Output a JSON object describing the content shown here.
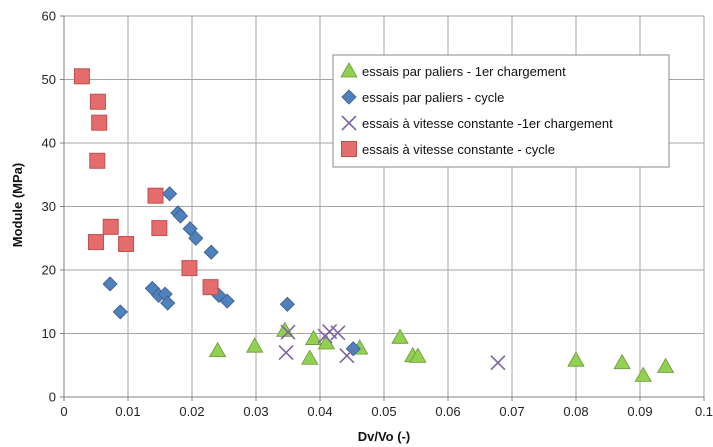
{
  "chart_data": {
    "type": "scatter",
    "title": "",
    "xlabel": "Dv/Vo (-)",
    "ylabel": "Module  (MPa)",
    "xlim": [
      0,
      0.1
    ],
    "ylim": [
      0,
      60
    ],
    "x_ticks": [
      "0",
      "0.01",
      "0.02",
      "0.03",
      "0.04",
      "0.05",
      "0.06",
      "0.07",
      "0.08",
      "0.09",
      "0.1"
    ],
    "y_ticks": [
      "0",
      "10",
      "20",
      "30",
      "40",
      "50",
      "60"
    ],
    "grid": "vertical-and-horizontal",
    "legend_position": "top-right",
    "series": [
      {
        "name": "essais par paliers - 1er chargement",
        "marker": "triangle",
        "color": "#92D050",
        "points": [
          {
            "x": 0.024,
            "y": 7.3
          },
          {
            "x": 0.0298,
            "y": 8.0
          },
          {
            "x": 0.0345,
            "y": 10.5
          },
          {
            "x": 0.0384,
            "y": 6.1
          },
          {
            "x": 0.039,
            "y": 9.2
          },
          {
            "x": 0.041,
            "y": 8.5
          },
          {
            "x": 0.0462,
            "y": 7.7
          },
          {
            "x": 0.0525,
            "y": 9.4
          },
          {
            "x": 0.0545,
            "y": 6.5
          },
          {
            "x": 0.0553,
            "y": 6.4
          },
          {
            "x": 0.08,
            "y": 5.8
          },
          {
            "x": 0.0872,
            "y": 5.4
          },
          {
            "x": 0.0905,
            "y": 3.4
          },
          {
            "x": 0.094,
            "y": 4.8
          }
        ]
      },
      {
        "name": "essais par paliers - cycle",
        "marker": "diamond",
        "color": "#4F81BD",
        "points": [
          {
            "x": 0.0072,
            "y": 17.8
          },
          {
            "x": 0.0088,
            "y": 13.4
          },
          {
            "x": 0.0138,
            "y": 17.1
          },
          {
            "x": 0.0148,
            "y": 16.0
          },
          {
            "x": 0.0158,
            "y": 16.2
          },
          {
            "x": 0.0162,
            "y": 14.8
          },
          {
            "x": 0.0165,
            "y": 32.0
          },
          {
            "x": 0.0178,
            "y": 29.0
          },
          {
            "x": 0.0182,
            "y": 28.5
          },
          {
            "x": 0.0197,
            "y": 26.5
          },
          {
            "x": 0.0206,
            "y": 25.0
          },
          {
            "x": 0.023,
            "y": 22.8
          },
          {
            "x": 0.0242,
            "y": 16.0
          },
          {
            "x": 0.0255,
            "y": 15.1
          },
          {
            "x": 0.0349,
            "y": 14.6
          },
          {
            "x": 0.0452,
            "y": 7.6
          }
        ]
      },
      {
        "name": "essais à vitesse constante -1er chargement",
        "marker": "x",
        "color": "#8064A2",
        "points": [
          {
            "x": 0.0347,
            "y": 7.0
          },
          {
            "x": 0.035,
            "y": 10.2
          },
          {
            "x": 0.0408,
            "y": 9.6
          },
          {
            "x": 0.0415,
            "y": 10.3
          },
          {
            "x": 0.0428,
            "y": 10.1
          },
          {
            "x": 0.0442,
            "y": 6.5
          },
          {
            "x": 0.0678,
            "y": 5.4
          }
        ]
      },
      {
        "name": "essais à vitesse constante - cycle",
        "marker": "square",
        "color": "#E46C6C",
        "points": [
          {
            "x": 0.0028,
            "y": 50.5
          },
          {
            "x": 0.0053,
            "y": 46.5
          },
          {
            "x": 0.0055,
            "y": 43.2
          },
          {
            "x": 0.0052,
            "y": 37.2
          },
          {
            "x": 0.005,
            "y": 24.4
          },
          {
            "x": 0.0073,
            "y": 26.8
          },
          {
            "x": 0.0097,
            "y": 24.1
          },
          {
            "x": 0.0143,
            "y": 31.7
          },
          {
            "x": 0.0149,
            "y": 26.6
          },
          {
            "x": 0.0196,
            "y": 20.3
          },
          {
            "x": 0.0229,
            "y": 17.3
          }
        ]
      }
    ]
  }
}
